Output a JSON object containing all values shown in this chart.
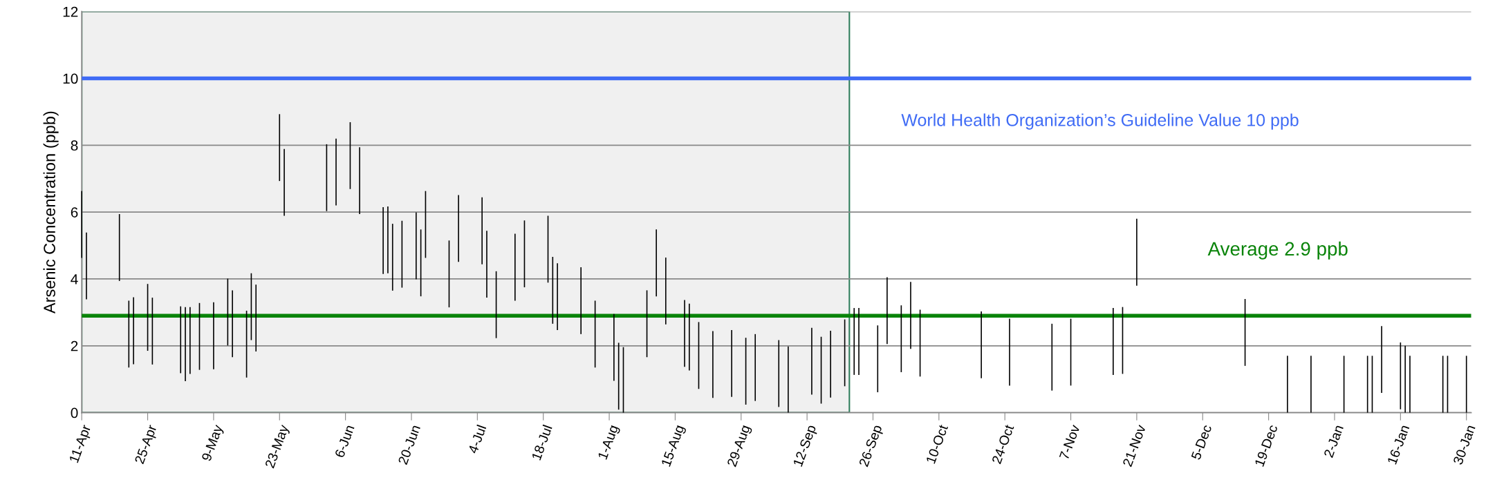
{
  "chart_data": {
    "type": "bar",
    "ylabel": "Arsenic Concentration (ppb)",
    "categories": [
      "11-Apr",
      null,
      null,
      null,
      null,
      null,
      null,
      null,
      null,
      null,
      null,
      null,
      null,
      null,
      "25-Apr",
      null,
      null,
      null,
      null,
      null,
      null,
      null,
      null,
      null,
      null,
      null,
      null,
      null,
      "9-May",
      null,
      null,
      null,
      null,
      null,
      null,
      null,
      null,
      null,
      null,
      null,
      null,
      null,
      "23-May",
      null,
      null,
      null,
      null,
      null,
      null,
      null,
      null,
      null,
      null,
      null,
      null,
      null,
      "6-Jun",
      null,
      null,
      null,
      null,
      null,
      null,
      null,
      null,
      null,
      null,
      null,
      null,
      null,
      "20-Jun",
      null,
      null,
      null,
      null,
      null,
      null,
      null,
      null,
      null,
      null,
      null,
      null,
      null,
      "4-Jul",
      null,
      null,
      null,
      null,
      null,
      null,
      null,
      null,
      null,
      null,
      null,
      null,
      null,
      "18-Jul",
      null,
      null,
      null,
      null,
      null,
      null,
      null,
      null,
      null,
      null,
      null,
      null,
      null,
      "1-Aug",
      null,
      null,
      null,
      null,
      null,
      null,
      null,
      null,
      null,
      null,
      null,
      null,
      null,
      "15-Aug",
      null,
      null,
      null,
      null,
      null,
      null,
      null,
      null,
      null,
      null,
      null,
      null,
      null,
      "29-Aug",
      null,
      null,
      null,
      null,
      null,
      null,
      null,
      null,
      null,
      null,
      null,
      null,
      null,
      "12-Sep",
      null,
      null,
      null,
      null,
      null,
      null,
      null,
      null,
      null,
      null,
      null,
      null,
      null,
      "26-Sep",
      null,
      null,
      null,
      null,
      null,
      null,
      null,
      null,
      null,
      null,
      null,
      null,
      null,
      "10-Oct",
      null,
      null,
      null,
      null,
      null,
      null,
      null,
      null,
      null,
      null,
      null,
      null,
      null,
      "24-Oct",
      null,
      null,
      null,
      null,
      null,
      null,
      null,
      null,
      null,
      null,
      null,
      null,
      null,
      "7-Nov",
      null,
      null,
      null,
      null,
      null,
      null,
      null,
      null,
      null,
      null,
      null,
      null,
      null,
      "21-Nov",
      null,
      null,
      null,
      null,
      null,
      null,
      null,
      null,
      null,
      null,
      null,
      null,
      null,
      "5-Dec",
      null,
      null,
      null,
      null,
      null,
      null,
      null,
      null,
      null,
      null,
      null,
      null,
      null,
      "19-Dec",
      null,
      null,
      null,
      null,
      null,
      null,
      null,
      null,
      null,
      null,
      null,
      null,
      null,
      "2-Jan",
      null,
      null,
      null,
      null,
      null,
      null,
      null,
      null,
      null,
      null,
      null,
      null,
      null,
      "16-Jan",
      null,
      null,
      null,
      null,
      null,
      null,
      null,
      null,
      null,
      null,
      null,
      null,
      null,
      "30-Jan",
      null
    ],
    "series": [
      {
        "color": "#000000",
        "values": [
          2,
          2,
          null,
          null,
          null,
          null,
          null,
          null,
          2,
          null,
          2,
          2,
          null,
          null,
          2,
          2,
          null,
          null,
          null,
          null,
          null,
          2,
          2.22,
          2,
          null,
          2,
          null,
          null,
          2,
          null,
          null,
          2,
          2,
          null,
          null,
          2,
          2,
          2,
          null,
          null,
          null,
          null,
          2,
          2,
          null,
          null,
          null,
          null,
          null,
          null,
          null,
          null,
          2,
          null,
          2,
          null,
          null,
          2,
          null,
          2,
          null,
          null,
          null,
          null,
          2,
          2,
          2,
          null,
          2,
          null,
          null,
          2,
          2,
          2,
          null,
          null,
          null,
          null,
          2,
          null,
          2,
          null,
          null,
          null,
          null,
          2,
          2,
          null,
          2,
          null,
          null,
          null,
          2,
          null,
          2,
          null,
          null,
          null,
          null,
          2,
          2,
          2,
          null,
          null,
          null,
          null,
          2,
          null,
          null,
          2,
          null,
          null,
          null,
          2,
          2,
          1.96,
          null,
          null,
          null,
          null,
          2,
          null,
          2,
          null,
          2,
          null,
          null,
          null,
          2,
          2,
          null,
          2,
          null,
          null,
          2,
          null,
          null,
          null,
          2,
          null,
          null,
          2,
          null,
          2,
          null,
          null,
          null,
          null,
          2,
          null,
          1.98,
          null,
          null,
          null,
          null,
          2,
          null,
          2,
          null,
          2,
          null,
          null,
          2,
          null,
          2,
          2,
          null,
          null,
          null,
          2,
          null,
          2,
          null,
          null,
          2,
          null,
          2,
          null,
          2,
          null,
          null,
          null,
          null,
          null,
          null,
          null,
          null,
          null,
          null,
          null,
          null,
          2,
          null,
          null,
          null,
          null,
          null,
          2,
          null,
          null,
          null,
          null,
          null,
          null,
          null,
          null,
          2,
          null,
          null,
          null,
          2,
          null,
          null,
          null,
          null,
          null,
          null,
          null,
          null,
          2,
          null,
          2,
          null,
          null,
          2,
          null,
          null,
          null,
          null,
          null,
          null,
          null,
          null,
          null,
          null,
          null,
          null,
          null,
          null,
          null,
          null,
          null,
          null,
          null,
          null,
          null,
          null,
          2,
          null,
          null,
          null,
          null,
          null,
          null,
          null,
          null,
          1.7,
          null,
          null,
          null,
          null,
          1.7,
          null,
          null,
          null,
          null,
          null,
          null,
          1.7,
          null,
          null,
          null,
          null,
          1.7,
          1.7,
          null,
          2,
          null,
          null,
          null,
          2,
          2,
          1.7,
          null,
          null,
          null,
          null,
          null,
          null,
          1.7,
          1.7,
          null,
          null,
          null,
          1.7,
          null
        ],
        "base": [
          4.63,
          3.39,
          null,
          null,
          null,
          null,
          null,
          null,
          3.94,
          null,
          1.35,
          1.45,
          null,
          null,
          1.85,
          1.44,
          null,
          null,
          null,
          null,
          null,
          1.18,
          0.94,
          1.16,
          null,
          1.28,
          null,
          null,
          1.3,
          null,
          null,
          2.01,
          1.66,
          null,
          null,
          1.05,
          2.17,
          1.83,
          null,
          null,
          null,
          null,
          6.93,
          5.89,
          null,
          null,
          null,
          null,
          null,
          null,
          null,
          null,
          6.03,
          null,
          6.2,
          null,
          null,
          6.69,
          null,
          5.94,
          null,
          null,
          null,
          null,
          4.15,
          4.17,
          3.65,
          null,
          3.74,
          null,
          null,
          3.99,
          3.48,
          4.63,
          null,
          null,
          null,
          null,
          3.15,
          null,
          4.51,
          null,
          null,
          null,
          null,
          4.44,
          3.44,
          null,
          2.23,
          null,
          null,
          null,
          3.35,
          null,
          3.75,
          null,
          null,
          null,
          null,
          3.89,
          2.66,
          2.47,
          null,
          null,
          null,
          null,
          2.35,
          null,
          null,
          1.35,
          null,
          null,
          null,
          0.95,
          0.09,
          0,
          null,
          null,
          null,
          null,
          1.66,
          null,
          3.48,
          null,
          2.64,
          null,
          null,
          null,
          1.37,
          1.26,
          null,
          0.71,
          null,
          null,
          0.44,
          null,
          null,
          null,
          0.47,
          null,
          null,
          0.24,
          null,
          0.35,
          null,
          null,
          null,
          null,
          0.17,
          null,
          0,
          null,
          null,
          null,
          null,
          0.54,
          null,
          0.27,
          null,
          0.45,
          null,
          null,
          0.79,
          null,
          1.13,
          1.13,
          null,
          null,
          null,
          0.61,
          null,
          2.05,
          null,
          null,
          1.21,
          null,
          1.91,
          null,
          1.08,
          null,
          null,
          null,
          null,
          null,
          null,
          null,
          null,
          null,
          null,
          null,
          null,
          1.03,
          null,
          null,
          null,
          null,
          null,
          0.81,
          null,
          null,
          null,
          null,
          null,
          null,
          null,
          null,
          0.66,
          null,
          null,
          null,
          0.81,
          null,
          null,
          null,
          null,
          null,
          null,
          null,
          null,
          1.13,
          null,
          1.16,
          null,
          null,
          3.8,
          null,
          null,
          null,
          null,
          null,
          null,
          null,
          null,
          null,
          null,
          null,
          null,
          null,
          null,
          null,
          null,
          null,
          null,
          null,
          null,
          null,
          null,
          1.4,
          null,
          null,
          null,
          null,
          null,
          null,
          null,
          null,
          0,
          null,
          null,
          null,
          null,
          0,
          null,
          null,
          null,
          null,
          null,
          null,
          0,
          null,
          null,
          null,
          null,
          0,
          0,
          null,
          0.59,
          null,
          null,
          null,
          0.1,
          0,
          0,
          null,
          null,
          null,
          null,
          null,
          null,
          0,
          0,
          null,
          null,
          null,
          0,
          null
        ]
      }
    ],
    "ylim": [
      0,
      12
    ],
    "yticks": [
      0,
      2,
      4,
      6,
      8,
      10,
      12
    ],
    "grid": "y",
    "ref_lines": [
      {
        "axis": "y",
        "value": 10,
        "label": "World Health Organization’s Guideline Value 10 ppb",
        "color": "#3f6bf5"
      },
      {
        "axis": "y",
        "value": 2.9,
        "label": "Average 2.9 ppb",
        "color": "#0a840a"
      }
    ]
  }
}
